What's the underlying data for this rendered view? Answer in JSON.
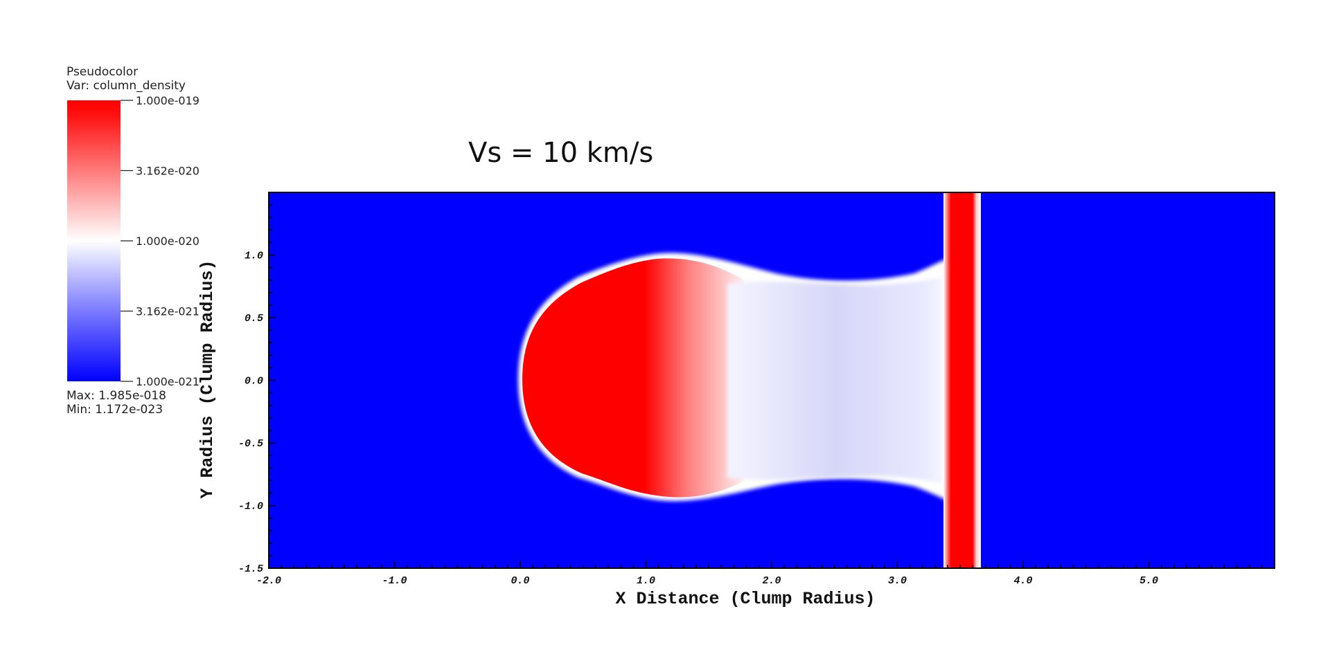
{
  "legend": {
    "title_line1": "Pseudocolor",
    "title_line2": "Var: column_density",
    "ticks": [
      "1.000e-019",
      "3.162e-020",
      "1.000e-020",
      "3.162e-021",
      "1.000e-021"
    ],
    "max_label": "Max:  1.985e-018",
    "min_label": "Min:  1.172e-023",
    "colors": {
      "high": "#ff0000",
      "mid": "#ffffff",
      "low": "#0000ff"
    }
  },
  "chart_data": {
    "type": "heatmap",
    "title": "Vs = 10 km/s",
    "xlabel": "X Distance (Clump Radius)",
    "ylabel": "Y Radius (Clump Radius)",
    "xlim": [
      -2.0,
      6.0
    ],
    "ylim": [
      -1.5,
      1.5
    ],
    "x_ticks": [
      "-2.0",
      "-1.0",
      "0.0",
      "1.0",
      "2.0",
      "3.0",
      "4.0",
      "5.0"
    ],
    "y_ticks": [
      "1.0",
      "0.5",
      "0.0",
      "-0.5",
      "-1.0",
      "-1.5"
    ],
    "background_color": "#0000ff",
    "shock_front_x": [
      3.4,
      3.68
    ]
  }
}
